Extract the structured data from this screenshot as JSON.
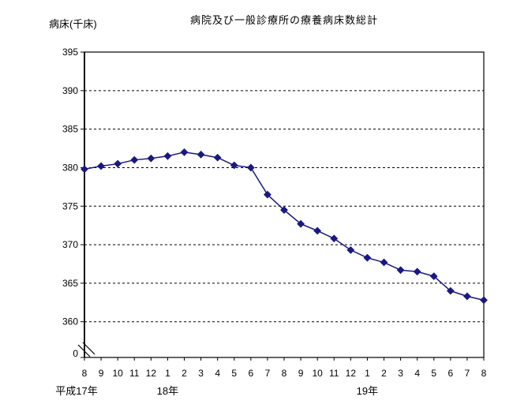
{
  "header": {
    "title": "病院及び一般診療所の療養病床数総計",
    "y_axis_unit_label": "病床(千床)"
  },
  "chart_data": {
    "type": "line",
    "title": "病院及び一般診療所の療養病床数総計",
    "ylabel": "病床(千床)",
    "xlabel": "",
    "legend": "none",
    "grid": "horizontal-dashed",
    "axis_break_to_zero": true,
    "y_ticks": [
      395,
      390,
      385,
      380,
      375,
      370,
      365,
      360
    ],
    "y_zero_label": "0",
    "ylim_display": [
      360,
      395
    ],
    "x_tick_labels": [
      "8",
      "9",
      "10",
      "11",
      "12",
      "1",
      "2",
      "3",
      "4",
      "5",
      "6",
      "7",
      "8",
      "9",
      "10",
      "11",
      "12",
      "1",
      "2",
      "3",
      "4",
      "5",
      "6",
      "7",
      "8"
    ],
    "year_labels": [
      {
        "label": "平成17年",
        "month_index": 0
      },
      {
        "label": "18年",
        "month_index": 5
      },
      {
        "label": "19年",
        "month_index": 17
      }
    ],
    "series": [
      {
        "name": "療養病床数総計",
        "marker": "diamond",
        "color": "#191980",
        "values": [
          379.8,
          380.2,
          380.5,
          381.0,
          381.2,
          381.5,
          382.0,
          381.7,
          381.3,
          380.3,
          380.0,
          376.5,
          374.5,
          372.7,
          371.8,
          370.8,
          369.3,
          368.3,
          367.7,
          366.7,
          366.5,
          365.9,
          364.0,
          363.3,
          362.8
        ]
      }
    ],
    "colors": {
      "line": "#191980",
      "grid": "#000000",
      "axis": "#000000",
      "background": "#ffffff"
    }
  }
}
